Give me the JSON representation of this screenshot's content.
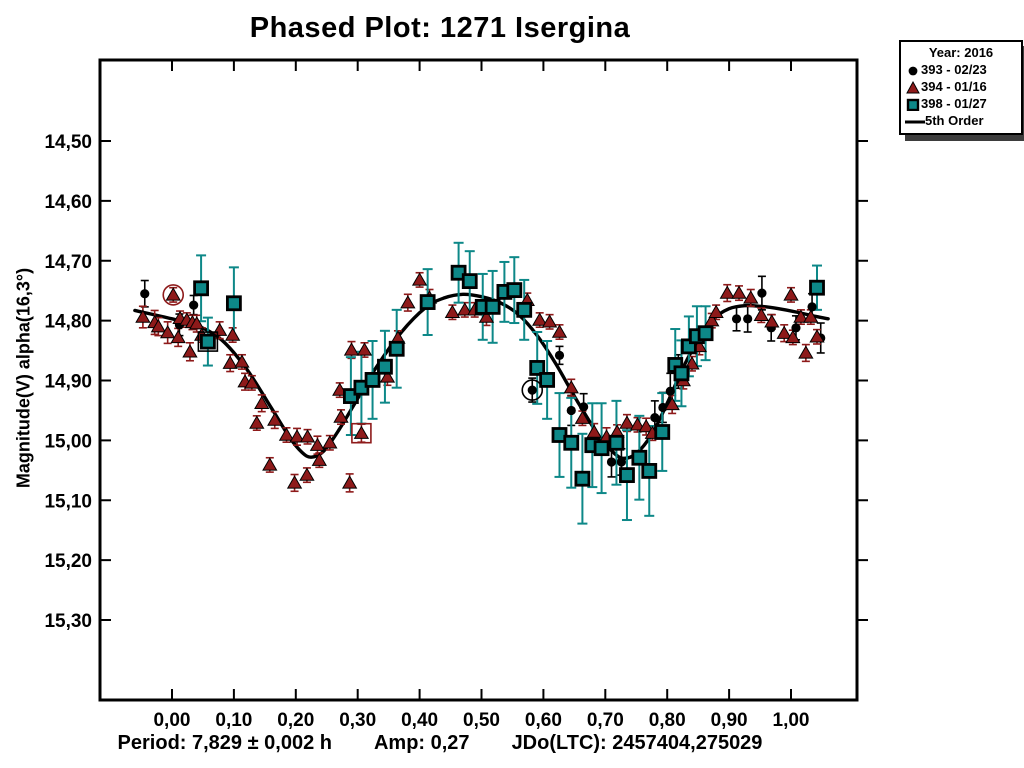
{
  "title": "Phased Plot: 1271 Isergina",
  "legend": {
    "year_label": "Year: 2016",
    "entries": [
      {
        "label": "393 - 02/23",
        "marker": "circle",
        "color": "#000000"
      },
      {
        "label": "394 - 01/16",
        "marker": "triangle",
        "color": "#8e1a1a"
      },
      {
        "label": "398 - 01/27",
        "marker": "square",
        "color": "#0d8888"
      },
      {
        "label": "5th Order",
        "marker": "line",
        "color": "#000000"
      }
    ]
  },
  "footer": {
    "period": "Period: 7,829 ± 0,002 h",
    "amp": "Amp: 0,27",
    "jdo": "JDo(LTC): 2457404,275029"
  },
  "chart_data": {
    "type": "scatter",
    "title": "Phased Plot: 1271 Isergina",
    "xlabel": "",
    "ylabel": "Magnitude(V) alpha(16,3°)",
    "x_axis": {
      "range": [
        -0.1163,
        1.1066
      ],
      "ticks": [
        {
          "v": 0.0,
          "label": "0,00"
        },
        {
          "v": 0.1,
          "label": "0,10"
        },
        {
          "v": 0.2,
          "label": "0,20"
        },
        {
          "v": 0.3,
          "label": "0,30"
        },
        {
          "v": 0.4,
          "label": "0,40"
        },
        {
          "v": 0.5,
          "label": "0,50"
        },
        {
          "v": 0.6,
          "label": "0,60"
        },
        {
          "v": 0.7,
          "label": "0,70"
        },
        {
          "v": 0.8,
          "label": "0,80"
        },
        {
          "v": 0.9,
          "label": "0,90"
        },
        {
          "v": 1.0,
          "label": "1,00"
        }
      ]
    },
    "y_axis": {
      "range": [
        14.3647,
        15.4336
      ],
      "inverted": true,
      "ticks": [
        {
          "v": 14.5,
          "label": "14,50"
        },
        {
          "v": 14.6,
          "label": "14,60"
        },
        {
          "v": 14.7,
          "label": "14,70"
        },
        {
          "v": 14.8,
          "label": "14,80"
        },
        {
          "v": 14.9,
          "label": "14,90"
        },
        {
          "v": 15.0,
          "label": "15,00"
        },
        {
          "v": 15.1,
          "label": "15,10"
        },
        {
          "v": 15.2,
          "label": "15,20"
        },
        {
          "v": 15.3,
          "label": "15,30"
        }
      ]
    },
    "series": [
      {
        "name": "393 - 02/23",
        "marker": "circle",
        "color": "#000000",
        "points": [
          [
            -0.044,
            14.755,
            0.022
          ],
          [
            0.012,
            14.807,
            0.018
          ],
          [
            0.035,
            14.774,
            0.016
          ],
          [
            0.582,
            14.916,
            0.02
          ],
          [
            0.626,
            14.858,
            0.015
          ],
          [
            0.645,
            14.95,
            0.025
          ],
          [
            0.665,
            14.944,
            0.022
          ],
          [
            0.71,
            15.036,
            0.025
          ],
          [
            0.726,
            15.036,
            0.022
          ],
          [
            0.78,
            14.962,
            0.028
          ],
          [
            0.793,
            14.945,
            0.025
          ],
          [
            0.805,
            14.918,
            0.03
          ],
          [
            0.818,
            14.885,
            0.028
          ],
          [
            0.912,
            14.797,
            0.02
          ],
          [
            0.93,
            14.797,
            0.022
          ],
          [
            0.953,
            14.754,
            0.028
          ],
          [
            0.968,
            14.812,
            0.022
          ],
          [
            1.008,
            14.812,
            0.02
          ],
          [
            1.034,
            14.777,
            0.022
          ],
          [
            1.048,
            14.829,
            0.025
          ]
        ]
      },
      {
        "name": "394 - 01/16",
        "marker": "triangle",
        "color": "#8e1a1a",
        "points": [
          [
            -0.047,
            14.794,
            0.018
          ],
          [
            -0.028,
            14.803,
            0.02
          ],
          [
            -0.022,
            14.81,
            0.015
          ],
          [
            -0.007,
            14.82,
            0.018
          ],
          [
            0.002,
            14.757,
            0.012
          ],
          [
            0.01,
            14.828,
            0.015
          ],
          [
            0.013,
            14.796,
            0.012
          ],
          [
            0.024,
            14.799,
            0.012
          ],
          [
            0.033,
            14.803,
            0.012
          ],
          [
            0.04,
            14.805,
            0.014
          ],
          [
            0.029,
            14.852,
            0.015
          ],
          [
            0.048,
            14.824,
            0.012
          ],
          [
            0.077,
            14.816,
            0.014
          ],
          [
            0.098,
            14.824,
            0.012
          ],
          [
            0.094,
            14.871,
            0.014
          ],
          [
            0.113,
            14.869,
            0.012
          ],
          [
            0.118,
            14.902,
            0.014
          ],
          [
            0.129,
            14.904,
            0.012
          ],
          [
            0.145,
            14.938,
            0.014
          ],
          [
            0.137,
            14.971,
            0.012
          ],
          [
            0.158,
            15.041,
            0.012
          ],
          [
            0.166,
            14.966,
            0.014
          ],
          [
            0.185,
            14.991,
            0.012
          ],
          [
            0.198,
            15.071,
            0.014
          ],
          [
            0.202,
            14.994,
            0.014
          ],
          [
            0.218,
            15.058,
            0.012
          ],
          [
            0.219,
            14.994,
            0.012
          ],
          [
            0.235,
            15.008,
            0.015
          ],
          [
            0.238,
            15.033,
            0.012
          ],
          [
            0.255,
            15.004,
            0.012
          ],
          [
            0.271,
            14.916,
            0.012
          ],
          [
            0.273,
            14.961,
            0.012
          ],
          [
            0.287,
            15.071,
            0.015
          ],
          [
            0.29,
            14.849,
            0.014
          ],
          [
            0.306,
            14.988,
            0.015
          ],
          [
            0.311,
            14.849,
            0.012
          ],
          [
            0.348,
            14.894,
            0.014
          ],
          [
            0.365,
            14.829,
            0.012
          ],
          [
            0.381,
            14.77,
            0.014
          ],
          [
            0.4,
            14.732,
            0.012
          ],
          [
            0.416,
            14.762,
            0.014
          ],
          [
            0.453,
            14.786,
            0.012
          ],
          [
            0.473,
            14.782,
            0.012
          ],
          [
            0.489,
            14.782,
            0.012
          ],
          [
            0.508,
            14.794,
            0.014
          ],
          [
            0.574,
            14.766,
            0.012
          ],
          [
            0.594,
            14.799,
            0.012
          ],
          [
            0.61,
            14.802,
            0.012
          ],
          [
            0.626,
            14.819,
            0.012
          ],
          [
            0.645,
            14.912,
            0.014
          ],
          [
            0.663,
            14.963,
            0.012
          ],
          [
            0.682,
            14.986,
            0.014
          ],
          [
            0.702,
            14.994,
            0.015
          ],
          [
            0.719,
            14.986,
            0.012
          ],
          [
            0.735,
            14.971,
            0.014
          ],
          [
            0.752,
            14.974,
            0.012
          ],
          [
            0.766,
            14.977,
            0.014
          ],
          [
            0.776,
            14.988,
            0.012
          ],
          [
            0.808,
            14.94,
            0.015
          ],
          [
            0.826,
            14.9,
            0.014
          ],
          [
            0.84,
            14.872,
            0.012
          ],
          [
            0.852,
            14.843,
            0.014
          ],
          [
            0.872,
            14.8,
            0.012
          ],
          [
            0.879,
            14.786,
            0.012
          ],
          [
            0.897,
            14.754,
            0.014
          ],
          [
            0.916,
            14.754,
            0.012
          ],
          [
            0.935,
            14.762,
            0.014
          ],
          [
            0.952,
            14.791,
            0.012
          ],
          [
            0.969,
            14.802,
            0.012
          ],
          [
            0.989,
            14.821,
            0.014
          ],
          [
            1.0,
            14.757,
            0.012
          ],
          [
            1.003,
            14.828,
            0.012
          ],
          [
            1.016,
            14.794,
            0.012
          ],
          [
            1.024,
            14.854,
            0.014
          ],
          [
            1.032,
            14.794,
            0.012
          ],
          [
            1.042,
            14.827,
            0.012
          ]
        ]
      },
      {
        "name": "398 - 01/27",
        "marker": "square",
        "color": "#0d8888",
        "points": [
          [
            0.047,
            14.746,
            0.055
          ],
          [
            0.058,
            14.835,
            0.04
          ],
          [
            0.1,
            14.771,
            0.06
          ],
          [
            0.289,
            14.926,
            0.065
          ],
          [
            0.306,
            14.912,
            0.06
          ],
          [
            0.324,
            14.899,
            0.065
          ],
          [
            0.344,
            14.877,
            0.06
          ],
          [
            0.363,
            14.847,
            0.065
          ],
          [
            0.413,
            14.769,
            0.055
          ],
          [
            0.463,
            14.72,
            0.05
          ],
          [
            0.481,
            14.734,
            0.05
          ],
          [
            0.502,
            14.777,
            0.055
          ],
          [
            0.518,
            14.777,
            0.06
          ],
          [
            0.537,
            14.752,
            0.05
          ],
          [
            0.553,
            14.749,
            0.055
          ],
          [
            0.569,
            14.782,
            0.05
          ],
          [
            0.59,
            14.879,
            0.06
          ],
          [
            0.606,
            14.899,
            0.065
          ],
          [
            0.626,
            14.991,
            0.07
          ],
          [
            0.645,
            15.004,
            0.075
          ],
          [
            0.663,
            15.064,
            0.075
          ],
          [
            0.679,
            15.008,
            0.07
          ],
          [
            0.694,
            15.013,
            0.075
          ],
          [
            0.718,
            15.004,
            0.07
          ],
          [
            0.735,
            15.058,
            0.075
          ],
          [
            0.755,
            15.029,
            0.07
          ],
          [
            0.771,
            15.051,
            0.075
          ],
          [
            0.792,
            14.986,
            0.065
          ],
          [
            0.813,
            14.874,
            0.06
          ],
          [
            0.823,
            14.888,
            0.055
          ],
          [
            0.835,
            14.843,
            0.05
          ],
          [
            0.848,
            14.826,
            0.05
          ],
          [
            0.862,
            14.821,
            0.045
          ],
          [
            1.042,
            14.745,
            0.037
          ]
        ]
      }
    ],
    "fit": {
      "name": "5th Order",
      "color": "#000000",
      "points": [
        [
          -0.06,
          14.783
        ],
        [
          0.0,
          14.797
        ],
        [
          0.04,
          14.808
        ],
        [
          0.08,
          14.832
        ],
        [
          0.12,
          14.88
        ],
        [
          0.16,
          14.945
        ],
        [
          0.19,
          14.995
        ],
        [
          0.21,
          15.02
        ],
        [
          0.225,
          15.028
        ],
        [
          0.245,
          15.018
        ],
        [
          0.27,
          14.982
        ],
        [
          0.3,
          14.93
        ],
        [
          0.33,
          14.878
        ],
        [
          0.37,
          14.82
        ],
        [
          0.41,
          14.778
        ],
        [
          0.44,
          14.762
        ],
        [
          0.47,
          14.756
        ],
        [
          0.5,
          14.76
        ],
        [
          0.53,
          14.77
        ],
        [
          0.56,
          14.79
        ],
        [
          0.59,
          14.825
        ],
        [
          0.62,
          14.872
        ],
        [
          0.655,
          14.935
        ],
        [
          0.69,
          14.993
        ],
        [
          0.715,
          15.022
        ],
        [
          0.73,
          15.03
        ],
        [
          0.75,
          15.022
        ],
        [
          0.775,
          14.99
        ],
        [
          0.8,
          14.938
        ],
        [
          0.825,
          14.88
        ],
        [
          0.85,
          14.832
        ],
        [
          0.875,
          14.797
        ],
        [
          0.9,
          14.78
        ],
        [
          0.925,
          14.775
        ],
        [
          0.95,
          14.776
        ],
        [
          0.98,
          14.78
        ],
        [
          1.01,
          14.786
        ],
        [
          1.04,
          14.793
        ],
        [
          1.06,
          14.797
        ]
      ]
    },
    "annotations": [
      {
        "shape": "ring",
        "x": 0.002,
        "y": 14.757,
        "color": "#8e1a1a"
      },
      {
        "shape": "ring",
        "x": 0.582,
        "y": 14.916,
        "color": "#000000"
      },
      {
        "shape": "box",
        "x": 0.058,
        "y": 14.835,
        "color": "#000000"
      },
      {
        "shape": "box",
        "x": 0.306,
        "y": 14.988,
        "color": "#8e1a1a"
      }
    ]
  }
}
